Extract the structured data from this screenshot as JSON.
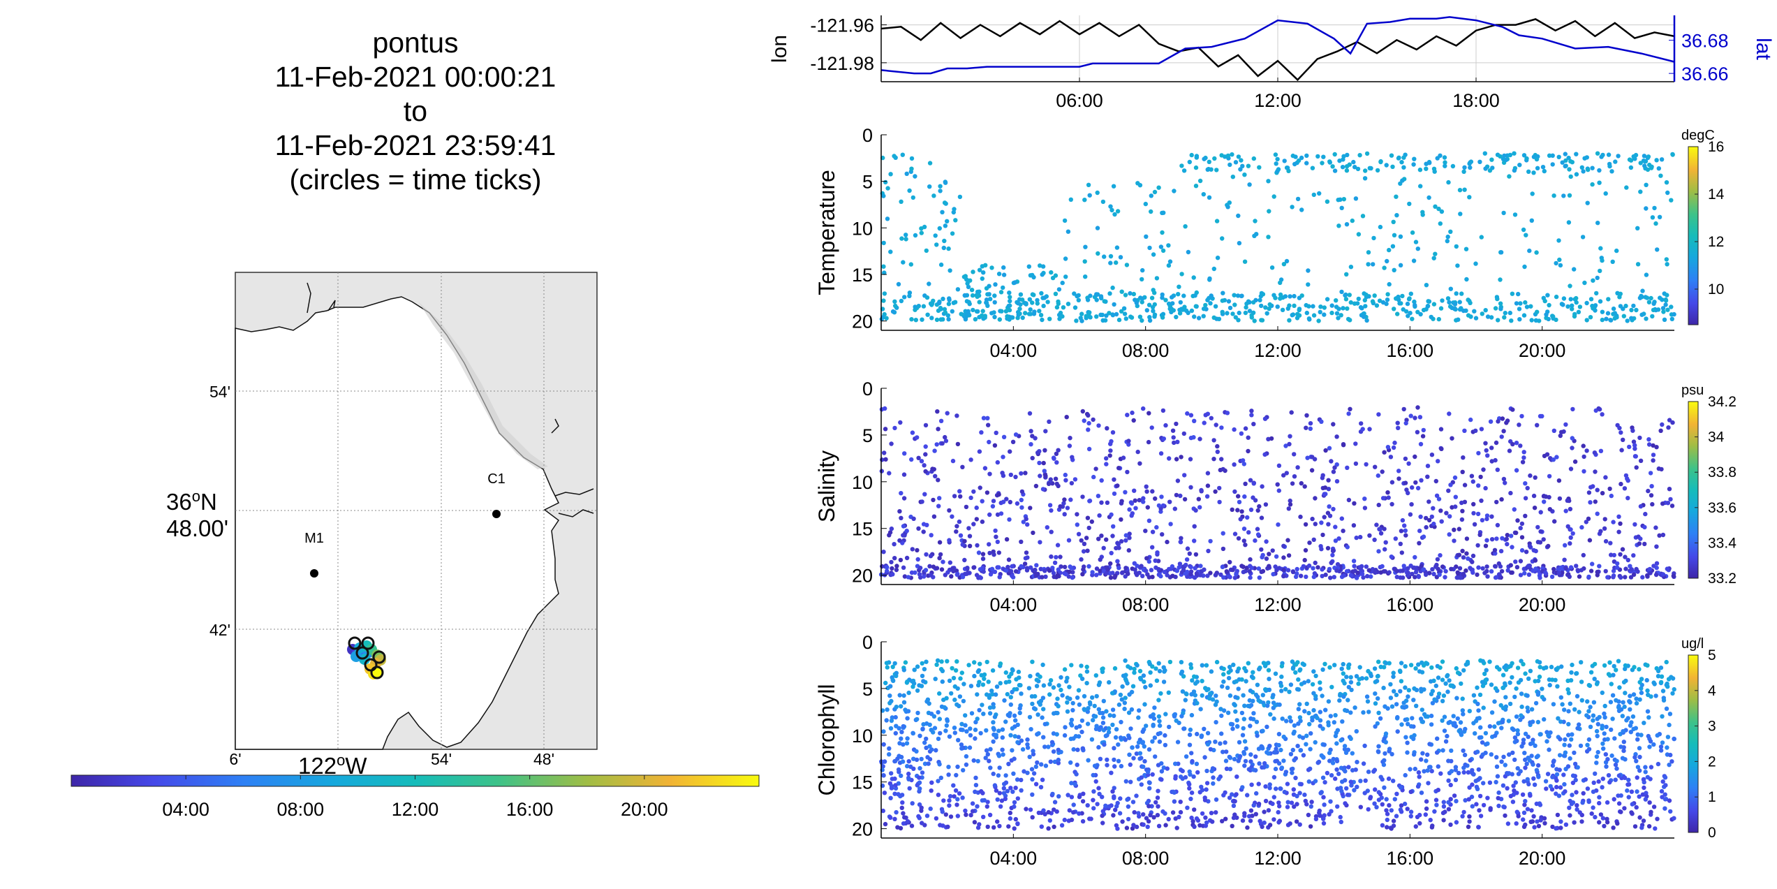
{
  "title": {
    "lines": [
      "pontus",
      "11-Feb-2021 00:00:21",
      "to",
      "11-Feb-2021 23:59:41",
      "(circles = time ticks)"
    ]
  },
  "map": {
    "lat_ticks": [
      "54'",
      "42'"
    ],
    "lat_center": [
      "36",
      "o",
      "N",
      "48.00'"
    ],
    "lon_ticks": [
      "6'",
      "54'",
      "48'"
    ],
    "lon_center": [
      "122",
      "o",
      "W"
    ],
    "stations": [
      {
        "label": "M1"
      },
      {
        "label": "C1"
      }
    ],
    "colors": {
      "land": "#e6e6e6",
      "water": "#ffffff",
      "coast": "#000000",
      "grid": "#888888"
    }
  },
  "time_colorbar": {
    "ticks": [
      "04:00",
      "08:00",
      "12:00",
      "16:00",
      "20:00"
    ]
  },
  "chart_data": [
    {
      "type": "line",
      "x_ticks": [
        "06:00",
        "12:00",
        "18:00"
      ],
      "xlim_hours": [
        0,
        24
      ],
      "left_axis": {
        "label": "lon",
        "ticks": [
          "-121.96",
          "-121.98"
        ],
        "ylim": [
          -121.99,
          -121.955
        ],
        "color": "#000000"
      },
      "right_axis": {
        "label": "lat",
        "ticks": [
          "36.68",
          "36.66"
        ],
        "ylim": [
          36.655,
          36.695
        ],
        "color": "#0000cc"
      },
      "grid": true,
      "series": [
        {
          "axis": "left",
          "color": "#000000",
          "x": [
            0,
            0.6,
            1.2,
            1.8,
            2.4,
            3.0,
            3.6,
            4.2,
            4.8,
            5.4,
            6.0,
            6.6,
            7.2,
            7.8,
            8.4,
            9.0,
            9.6,
            10.2,
            10.8,
            11.4,
            12.0,
            12.6,
            13.2,
            13.8,
            14.4,
            15.0,
            15.6,
            16.2,
            16.8,
            17.4,
            18.0,
            18.6,
            19.2,
            19.8,
            20.4,
            21.0,
            21.6,
            22.2,
            22.8,
            23.4,
            24.0
          ],
          "y": [
            -121.962,
            -121.961,
            -121.968,
            -121.959,
            -121.967,
            -121.96,
            -121.966,
            -121.959,
            -121.965,
            -121.958,
            -121.965,
            -121.959,
            -121.966,
            -121.96,
            -121.97,
            -121.974,
            -121.972,
            -121.982,
            -121.976,
            -121.987,
            -121.979,
            -121.989,
            -121.978,
            -121.974,
            -121.969,
            -121.975,
            -121.968,
            -121.973,
            -121.966,
            -121.971,
            -121.963,
            -121.96,
            -121.96,
            -121.957,
            -121.963,
            -121.958,
            -121.966,
            -121.959,
            -121.967,
            -121.964,
            -121.966
          ]
        },
        {
          "axis": "right",
          "color": "#0000cc",
          "x": [
            0,
            1.0,
            1.5,
            2.0,
            2.6,
            3.2,
            4.5,
            6.0,
            6.4,
            7.6,
            8.4,
            9.2,
            10.0,
            11.0,
            12.0,
            12.9,
            13.7,
            14.2,
            14.7,
            15.4,
            16.0,
            16.8,
            17.2,
            18.0,
            18.8,
            19.3,
            20.0,
            21.0,
            22.0,
            23.0,
            24.0
          ],
          "y": [
            36.662,
            36.66,
            36.66,
            36.663,
            36.663,
            36.664,
            36.664,
            36.664,
            36.666,
            36.666,
            36.666,
            36.675,
            36.676,
            36.681,
            36.692,
            36.69,
            36.681,
            36.672,
            36.69,
            36.691,
            36.693,
            36.693,
            36.694,
            36.692,
            36.688,
            36.683,
            36.681,
            36.675,
            36.676,
            36.672,
            36.667
          ]
        }
      ]
    },
    {
      "type": "scatter",
      "name": "Temperature",
      "ylabel": "Temperature",
      "unit": "degC",
      "ylim": [
        0,
        21
      ],
      "yticks": [
        "0",
        "5",
        "10",
        "15",
        "20"
      ],
      "x_ticks": [
        "04:00",
        "08:00",
        "12:00",
        "16:00",
        "20:00"
      ],
      "clim": [
        8.5,
        16
      ],
      "cticks": [
        "16",
        "14",
        "12",
        "10"
      ],
      "typical_value": 11.4,
      "depth_bands_by_hour": [
        [
          0,
          2.5,
          [
            2,
            20
          ]
        ],
        [
          2.5,
          5.5,
          [
            14,
            20
          ]
        ],
        [
          5.5,
          9,
          [
            5,
            20
          ]
        ],
        [
          9,
          24,
          [
            2,
            20
          ]
        ]
      ]
    },
    {
      "type": "scatter",
      "name": "Salinity",
      "ylabel": "Salinity",
      "unit": "psu",
      "ylim": [
        0,
        21
      ],
      "yticks": [
        "0",
        "5",
        "10",
        "15",
        "20"
      ],
      "x_ticks": [
        "04:00",
        "08:00",
        "12:00",
        "16:00",
        "20:00"
      ],
      "clim": [
        33.2,
        34.2
      ],
      "cticks": [
        "34.2",
        "34",
        "33.8",
        "33.6",
        "33.4",
        "33.2"
      ],
      "typical_value": 33.28,
      "depth_range": [
        2,
        20
      ]
    },
    {
      "type": "scatter",
      "name": "Chlorophyll",
      "ylabel": "Chlorophyll",
      "unit": "ug/l",
      "ylim": [
        0,
        21
      ],
      "yticks": [
        "0",
        "5",
        "10",
        "15",
        "20"
      ],
      "x_ticks": [
        "04:00",
        "08:00",
        "12:00",
        "16:00",
        "20:00"
      ],
      "clim": [
        0,
        5
      ],
      "cticks": [
        "5",
        "4",
        "3",
        "2",
        "1",
        "0"
      ],
      "surface_value": 1.9,
      "deep_value": 0.4,
      "depth_range": [
        2,
        20
      ]
    }
  ]
}
